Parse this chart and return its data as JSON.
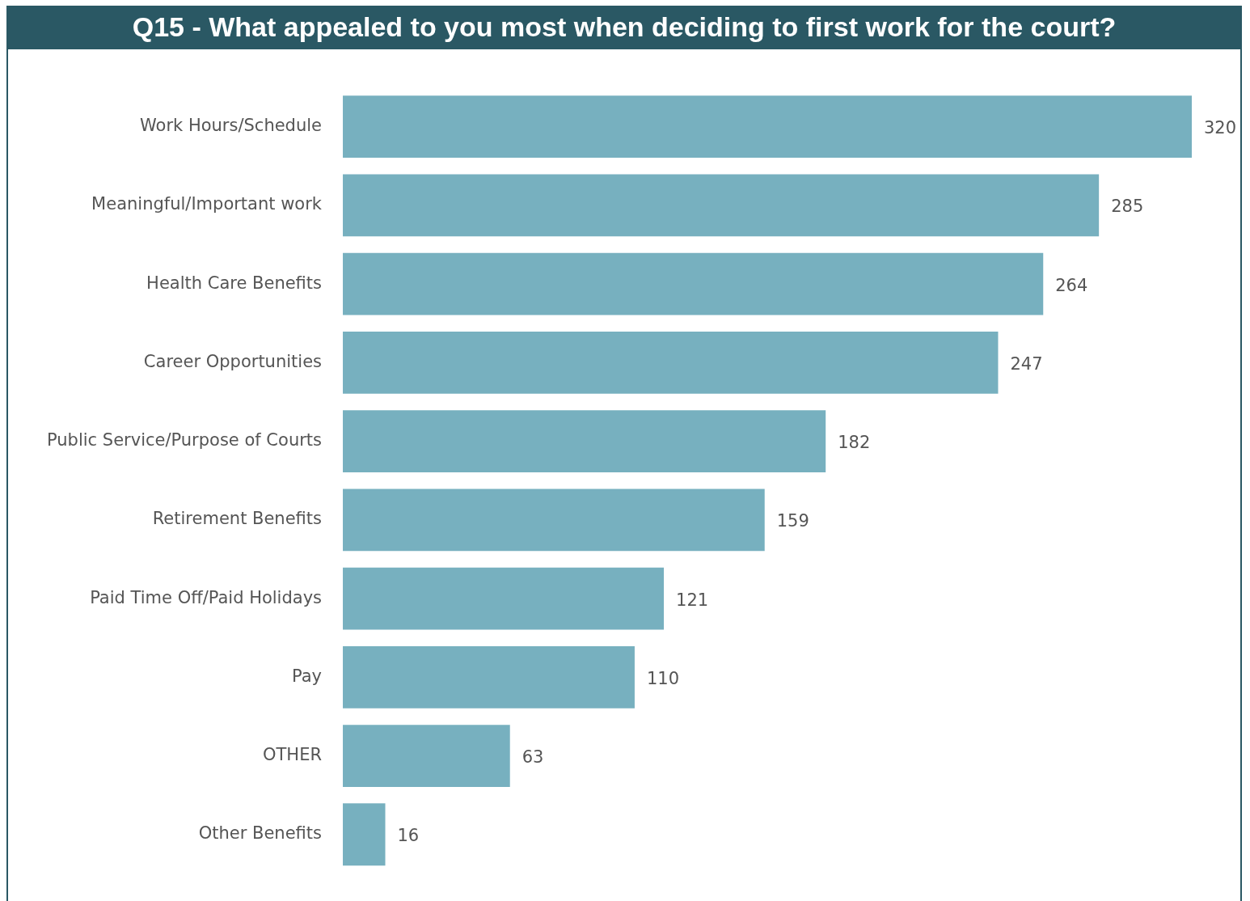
{
  "chart_data": {
    "type": "bar",
    "orientation": "horizontal",
    "title": "Q15 - What appealed to you most when deciding to first work for the court?",
    "categories": [
      "Work Hours/Schedule",
      "Meaningful/Important work",
      "Health Care Benefits",
      "Career Opportunities",
      "Public Service/Purpose of Courts",
      "Retirement Benefits",
      "Paid Time Off/Paid Holidays",
      "Pay",
      "OTHER",
      "Other Benefits"
    ],
    "values": [
      320,
      285,
      264,
      247,
      182,
      159,
      121,
      110,
      63,
      16
    ],
    "color": "#77b0bf",
    "data_labels": true,
    "legend": false
  }
}
